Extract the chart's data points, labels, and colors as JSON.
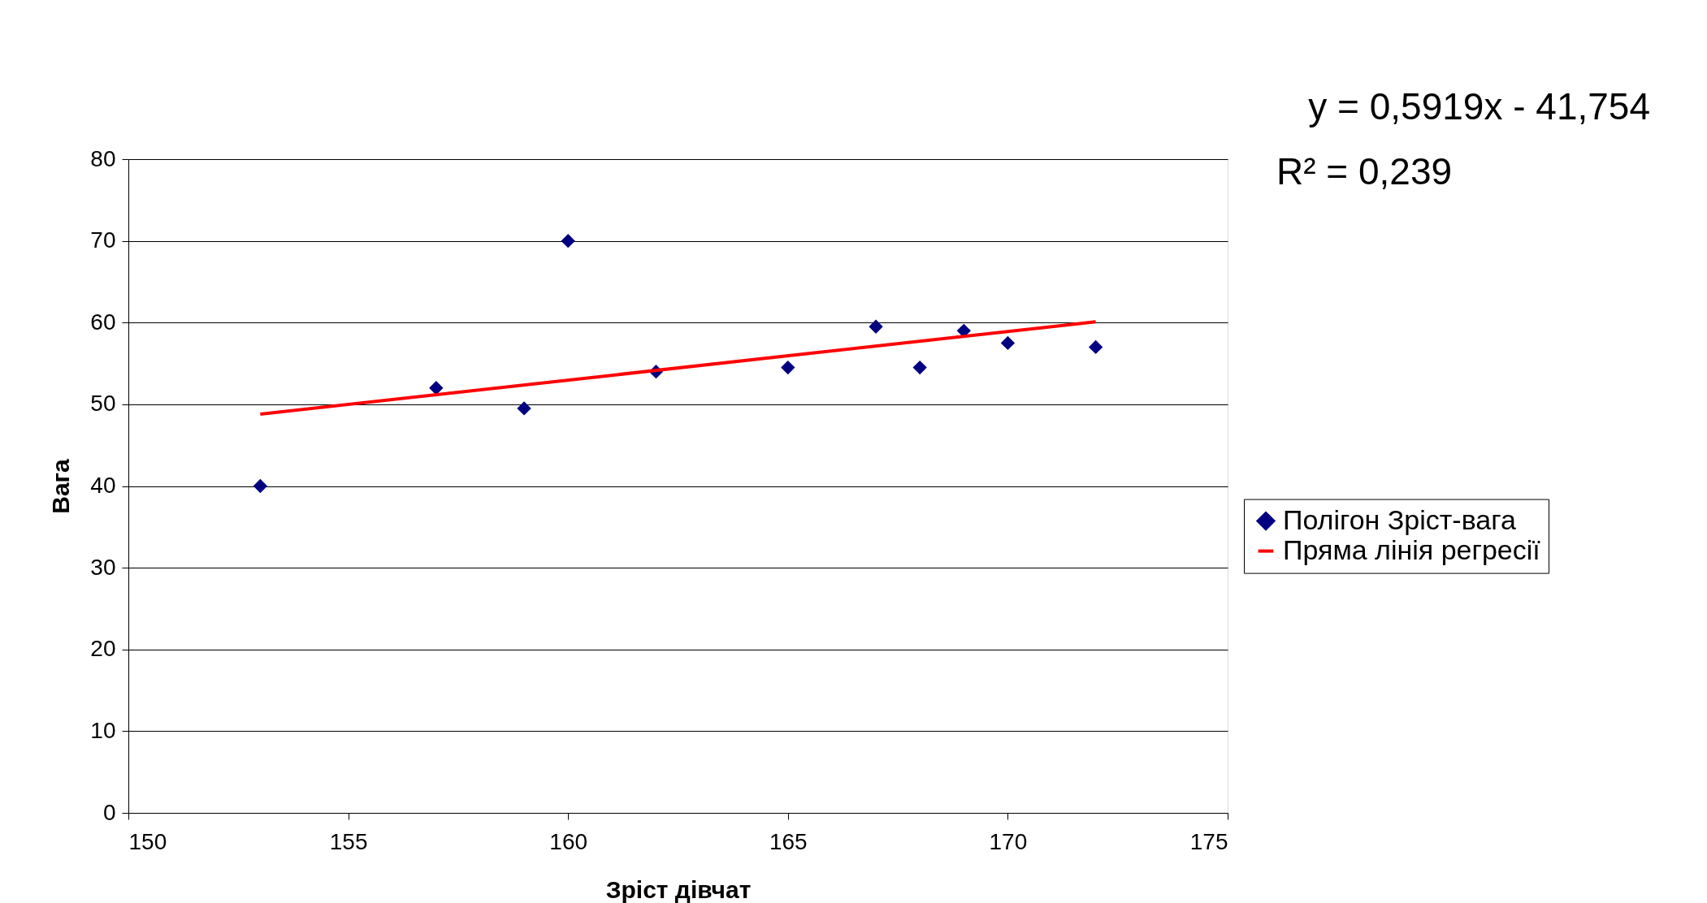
{
  "chart_data": {
    "type": "scatter",
    "xlabel": "Зріст дівчат",
    "ylabel": "Вага",
    "xlim": [
      150,
      175
    ],
    "xticks": [
      150,
      155,
      160,
      165,
      170,
      175
    ],
    "ylim": [
      0,
      80
    ],
    "yticks": [
      0,
      10,
      20,
      30,
      40,
      50,
      60,
      70,
      80
    ],
    "grid": "y",
    "legend": "bottom right",
    "series": [
      {
        "name": "Полігон Зріст-вага",
        "marker": "diamond",
        "color": "#000080",
        "x": [
          153,
          157,
          159,
          160,
          162,
          165,
          167,
          168,
          169,
          170,
          172
        ],
        "values": [
          40,
          52,
          49.5,
          70,
          54,
          54.5,
          59.5,
          54.5,
          59,
          57.5,
          57
        ]
      },
      {
        "name": "Пряма лінія регресії",
        "type": "line",
        "color": "#ff0000",
        "marker": "none",
        "line_style": "solid",
        "x": [
          153,
          172
        ],
        "values": [
          48.8,
          60.1
        ]
      }
    ],
    "annotations": [
      "y = 0,5919x - 41,754",
      "R² = 0,239"
    ]
  }
}
